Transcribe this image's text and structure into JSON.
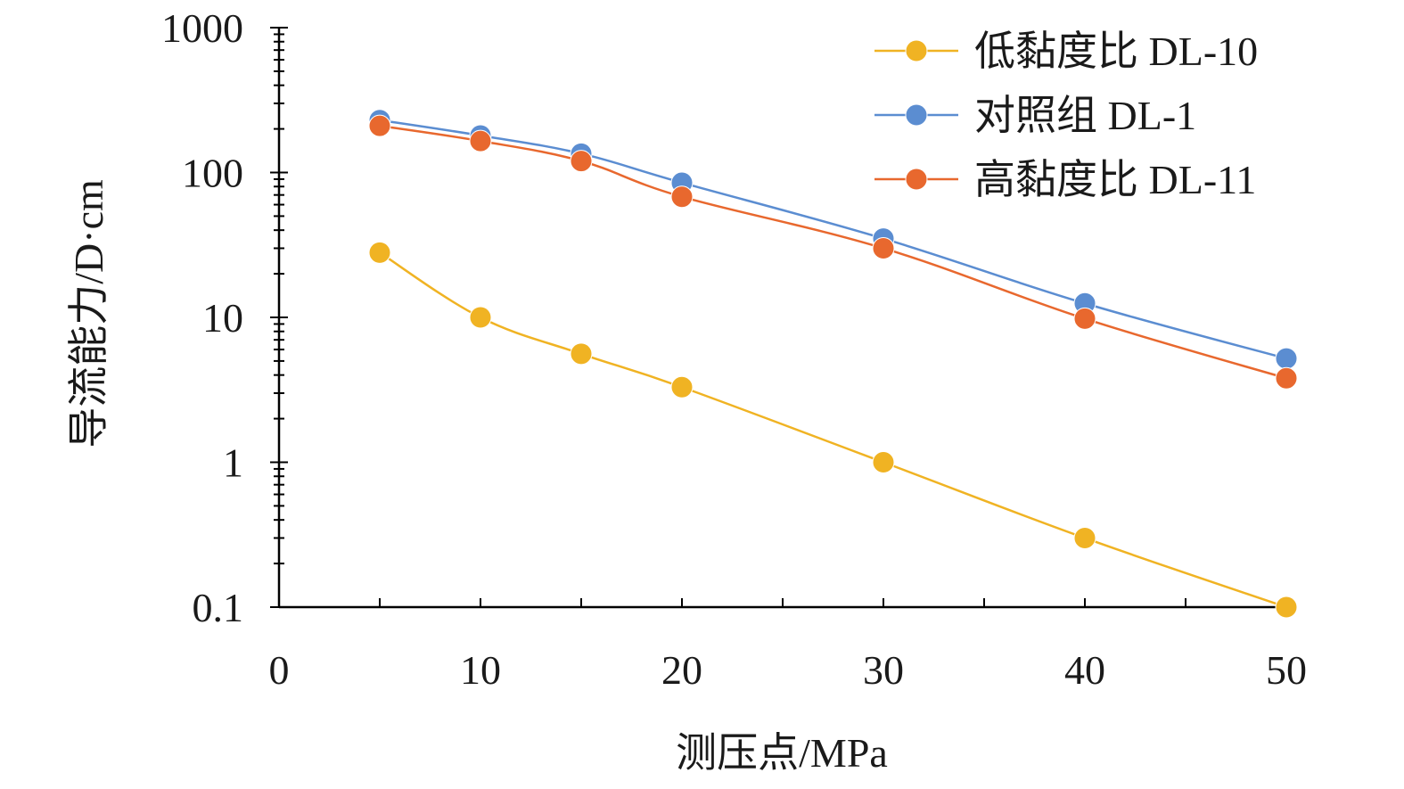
{
  "chart_data": {
    "type": "line",
    "xlabel": "测压点/MPa",
    "ylabel": "导流能力/D·cm",
    "xlim": [
      0,
      50
    ],
    "x_ticks": [
      0,
      10,
      20,
      30,
      40,
      50
    ],
    "ylim": [
      0.1,
      1000
    ],
    "y_scale": "log",
    "y_ticks": [
      0.1,
      1,
      10,
      100,
      1000
    ],
    "y_tick_labels": [
      "0.1",
      "1",
      "10",
      "100",
      "1000"
    ],
    "grid": false,
    "legend_position": "top-right",
    "series": [
      {
        "name": "低黏度比 DL-10",
        "color": "#F0B323",
        "x": [
          5,
          10,
          15,
          20,
          30,
          40,
          50
        ],
        "values": [
          28,
          10,
          5.6,
          3.3,
          1.0,
          0.3,
          0.1
        ]
      },
      {
        "name": "对照组 DL-1",
        "color": "#5B8DD1",
        "x": [
          5,
          10,
          15,
          20,
          30,
          40,
          50
        ],
        "values": [
          230,
          180,
          135,
          85,
          35,
          12.5,
          5.2
        ]
      },
      {
        "name": "高黏度比 DL-11",
        "color": "#E8682E",
        "x": [
          5,
          10,
          15,
          20,
          30,
          40,
          50
        ],
        "values": [
          210,
          165,
          120,
          68,
          30,
          9.8,
          3.8
        ]
      }
    ]
  }
}
